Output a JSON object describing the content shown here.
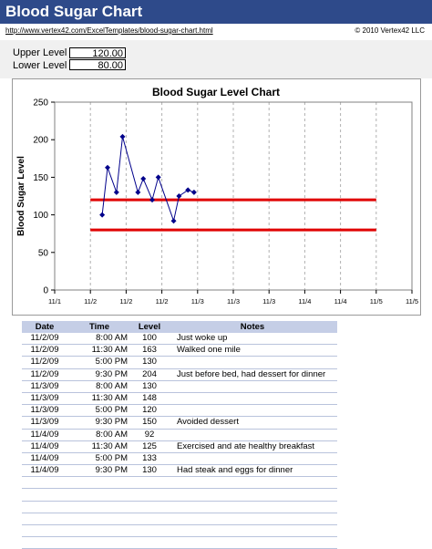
{
  "header": {
    "title": "Blood Sugar Chart"
  },
  "links": {
    "url": "http://www.vertex42.com/ExcelTemplates/blood-sugar-chart.html",
    "copyright": "© 2010 Vertex42 LLC"
  },
  "levels": {
    "upper_label": "Upper Level",
    "upper_value": "120.00",
    "lower_label": "Lower Level",
    "lower_value": "80.00"
  },
  "colors": {
    "title_bar": "#2e4a8a",
    "data_line": "#00008b",
    "limit_line": "#e00000",
    "table_header": "#c5cee6"
  },
  "chart_data": {
    "type": "line",
    "title": "Blood Sugar Level Chart",
    "ylabel": "Blood Sugar Level",
    "xlabel": "",
    "ylim": [
      0,
      250
    ],
    "yticks": [
      "0",
      "50",
      "100",
      "150",
      "200",
      "250"
    ],
    "xticks": [
      "11/1",
      "11/2",
      "11/2",
      "11/2",
      "11/3",
      "11/3",
      "11/3",
      "11/4",
      "11/4",
      "11/5",
      "11/5"
    ],
    "grid_x": true,
    "grid_y": false,
    "series": [
      {
        "values": [
          [
            1.33,
            100
          ],
          [
            1.48,
            163
          ],
          [
            1.73,
            130
          ],
          [
            1.9,
            204
          ],
          [
            2.33,
            130
          ],
          [
            2.48,
            148
          ],
          [
            2.73,
            120
          ],
          [
            2.9,
            150
          ],
          [
            3.33,
            92
          ],
          [
            3.48,
            125
          ],
          [
            3.73,
            133
          ],
          [
            3.9,
            130
          ]
        ]
      }
    ],
    "reference_lines": [
      {
        "y": 120
      },
      {
        "y": 80
      }
    ]
  },
  "table": {
    "headers": [
      "Date",
      "Time",
      "Level",
      "Notes"
    ],
    "rows": [
      [
        "11/2/09",
        "8:00 AM",
        "100",
        "Just woke up"
      ],
      [
        "11/2/09",
        "11:30 AM",
        "163",
        "Walked one mile"
      ],
      [
        "11/2/09",
        "5:00 PM",
        "130",
        ""
      ],
      [
        "11/2/09",
        "9:30 PM",
        "204",
        "Just before bed, had dessert for dinner"
      ],
      [
        "11/3/09",
        "8:00 AM",
        "130",
        ""
      ],
      [
        "11/3/09",
        "11:30 AM",
        "148",
        ""
      ],
      [
        "11/3/09",
        "5:00 PM",
        "120",
        ""
      ],
      [
        "11/3/09",
        "9:30 PM",
        "150",
        "Avoided dessert"
      ],
      [
        "11/4/09",
        "8:00 AM",
        "92",
        ""
      ],
      [
        "11/4/09",
        "11:30 AM",
        "125",
        "Exercised and ate healthy breakfast"
      ],
      [
        "11/4/09",
        "5:00 PM",
        "133",
        ""
      ],
      [
        "11/4/09",
        "9:30 PM",
        "130",
        "Had steak and eggs for dinner"
      ],
      [
        "",
        "",
        "",
        ""
      ],
      [
        "",
        "",
        "",
        ""
      ],
      [
        "",
        "",
        "",
        ""
      ],
      [
        "",
        "",
        "",
        ""
      ],
      [
        "",
        "",
        "",
        ""
      ],
      [
        "",
        "",
        "",
        ""
      ]
    ]
  }
}
